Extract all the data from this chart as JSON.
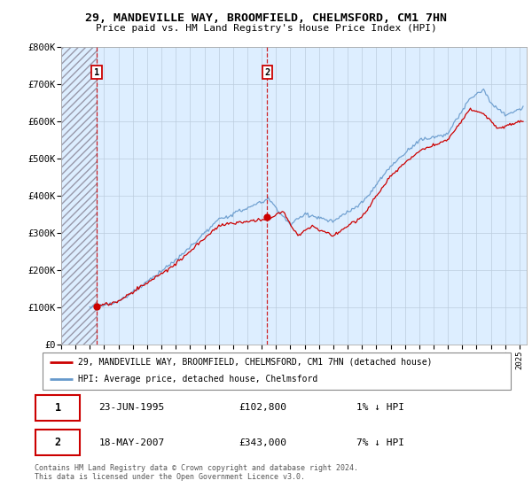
{
  "title": "29, MANDEVILLE WAY, BROOMFIELD, CHELMSFORD, CM1 7HN",
  "subtitle": "Price paid vs. HM Land Registry's House Price Index (HPI)",
  "transactions": [
    {
      "num": 1,
      "date_num": 1995.48,
      "price": 102800
    },
    {
      "num": 2,
      "date_num": 2007.38,
      "price": 343000
    }
  ],
  "ylim": [
    0,
    800000
  ],
  "xlim": [
    1993.0,
    2025.5
  ],
  "yticks": [
    0,
    100000,
    200000,
    300000,
    400000,
    500000,
    600000,
    700000,
    800000
  ],
  "ytick_labels": [
    "£0",
    "£100K",
    "£200K",
    "£300K",
    "£400K",
    "£500K",
    "£600K",
    "£700K",
    "£800K"
  ],
  "xticks": [
    1993,
    1994,
    1995,
    1996,
    1997,
    1998,
    1999,
    2000,
    2001,
    2002,
    2003,
    2004,
    2005,
    2006,
    2007,
    2008,
    2009,
    2010,
    2011,
    2012,
    2013,
    2014,
    2015,
    2016,
    2017,
    2018,
    2019,
    2020,
    2021,
    2022,
    2023,
    2024,
    2025
  ],
  "hatch_end": 1995.48,
  "legend_entries": [
    "29, MANDEVILLE WAY, BROOMFIELD, CHELMSFORD, CM1 7HN (detached house)",
    "HPI: Average price, detached house, Chelmsford"
  ],
  "table_rows": [
    [
      "1",
      "23-JUN-1995",
      "£102,800",
      "1% ↓ HPI"
    ],
    [
      "2",
      "18-MAY-2007",
      "£343,000",
      "7% ↓ HPI"
    ]
  ],
  "footer": "Contains HM Land Registry data © Crown copyright and database right 2024.\nThis data is licensed under the Open Government Licence v3.0.",
  "line_color_price": "#cc0000",
  "line_color_hpi": "#6699cc",
  "hatch_color": "#cccccc",
  "plot_bg": "#ddeeff",
  "grid_color": "#bbccdd"
}
